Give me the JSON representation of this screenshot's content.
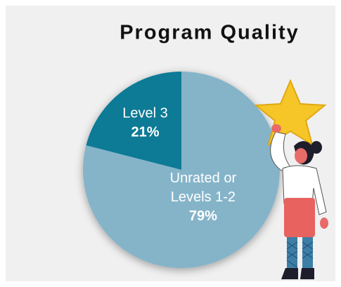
{
  "chart_data": {
    "type": "pie",
    "title": "Program Quality",
    "categories": [
      [
        "Level 3"
      ],
      [
        "Unrated or",
        "Levels 1-2"
      ]
    ],
    "values": [
      21,
      79
    ],
    "value_labels": [
      "21%",
      "79%"
    ],
    "colors": [
      "#0f7a96",
      "#85b4c9"
    ]
  }
}
